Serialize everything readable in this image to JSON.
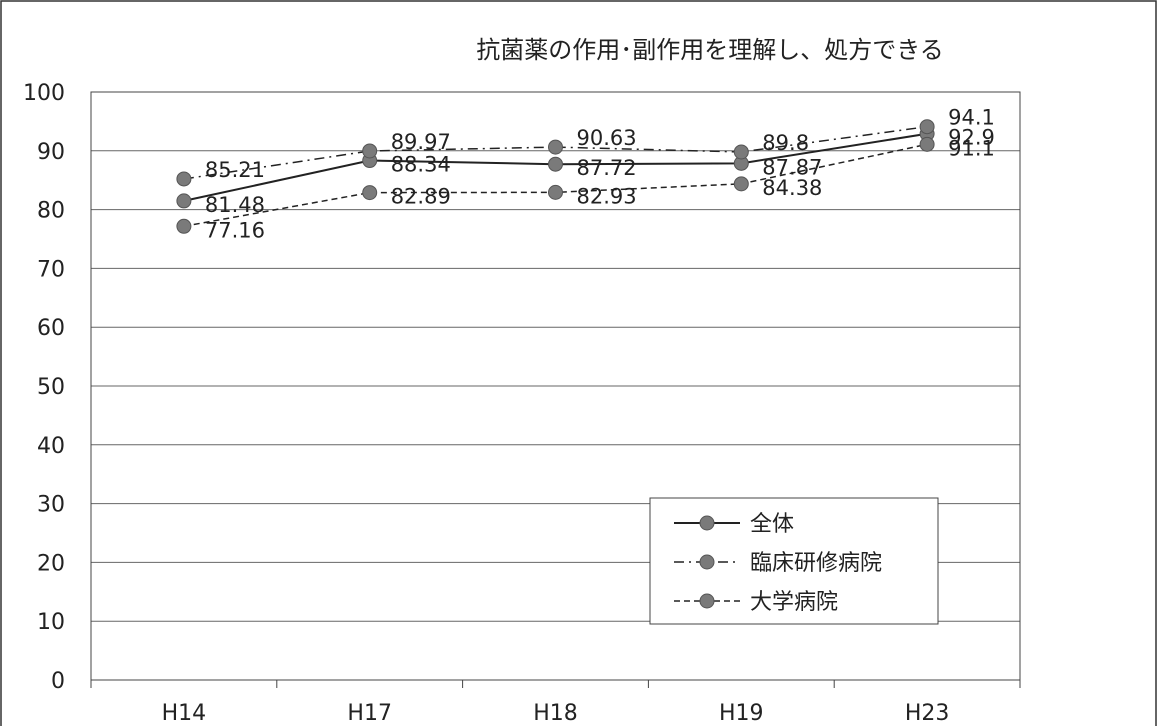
{
  "chart_data": {
    "type": "line",
    "title": "抗菌薬の作用･副作用を理解し、処方できる",
    "xlabel": "",
    "ylabel": "",
    "categories": [
      "H14",
      "H17",
      "H18",
      "H19",
      "H23"
    ],
    "ylim": [
      0,
      100
    ],
    "yticks": [
      "0",
      "10",
      "20",
      "30",
      "40",
      "50",
      "60",
      "70",
      "80",
      "90",
      "100"
    ],
    "grid": true,
    "legend_position": "bottom-right",
    "series": [
      {
        "name": "全体",
        "values": [
          81.48,
          88.34,
          87.72,
          87.87,
          92.9
        ],
        "labels": [
          "81.48",
          "88.34",
          "87.72",
          "87.87",
          "92.9"
        ],
        "line_style": "solid"
      },
      {
        "name": "臨床研修病院",
        "values": [
          85.21,
          89.97,
          90.63,
          89.8,
          94.1
        ],
        "labels": [
          "85.21",
          "89.97",
          "90.63",
          "89.8",
          "94.1"
        ],
        "line_style": "dashdot"
      },
      {
        "name": "大学病院",
        "values": [
          77.16,
          82.89,
          82.93,
          84.38,
          91.1
        ],
        "labels": [
          "77.16",
          "82.89",
          "82.93",
          "84.38",
          "91.1"
        ],
        "line_style": "dashed"
      }
    ]
  },
  "colors": {
    "line": "#222222",
    "marker": "#7a7a7a",
    "grid": "#666666"
  }
}
